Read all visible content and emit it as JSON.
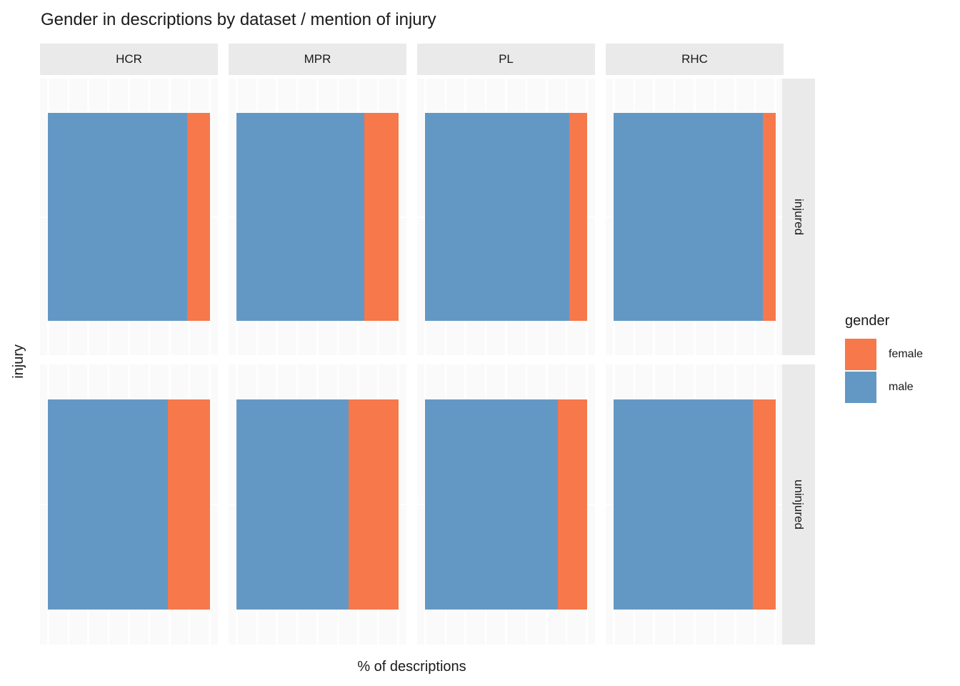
{
  "title": "Gender in descriptions by dataset / mention of injury",
  "x_axis_label": "% of descriptions",
  "y_axis_label": "injury",
  "facets": {
    "columns": [
      "HCR",
      "MPR",
      "PL",
      "RHC"
    ],
    "rows": [
      "injured",
      "uninjured"
    ]
  },
  "legend": {
    "title": "gender",
    "items": [
      {
        "label": "female",
        "color": "#F6784B"
      },
      {
        "label": "male",
        "color": "#6398C5"
      }
    ]
  },
  "colors": {
    "male": "#6398C5",
    "female": "#F6784B",
    "panel_background": "#FAFAFA",
    "strip_background": "#EAEAEA",
    "gridline": "#FFFFFF",
    "text": "#1A1A1A"
  },
  "chart_data": {
    "type": "bar",
    "orientation": "horizontal",
    "stacking": "percent",
    "title": "Gender in descriptions by dataset / mention of injury",
    "xlabel": "% of descriptions",
    "ylabel": "injury",
    "xlim": [
      0,
      100
    ],
    "facet_columns": [
      "HCR",
      "MPR",
      "PL",
      "RHC"
    ],
    "facet_rows": [
      "injured",
      "uninjured"
    ],
    "legend_position": "right",
    "grid": {
      "x_percent": [
        0,
        12.5,
        25,
        37.5,
        50,
        62.5,
        75,
        87.5,
        100
      ],
      "major_every": 25
    },
    "series_order": [
      "male",
      "female"
    ],
    "cells": [
      {
        "row": "injured",
        "col": "HCR",
        "male": 86,
        "female": 14
      },
      {
        "row": "injured",
        "col": "MPR",
        "male": 79,
        "female": 21
      },
      {
        "row": "injured",
        "col": "PL",
        "male": 89,
        "female": 11
      },
      {
        "row": "injured",
        "col": "RHC",
        "male": 92,
        "female": 8
      },
      {
        "row": "uninjured",
        "col": "HCR",
        "male": 74,
        "female": 26
      },
      {
        "row": "uninjured",
        "col": "MPR",
        "male": 69,
        "female": 31
      },
      {
        "row": "uninjured",
        "col": "PL",
        "male": 82,
        "female": 18
      },
      {
        "row": "uninjured",
        "col": "RHC",
        "male": 86,
        "female": 14
      }
    ]
  }
}
